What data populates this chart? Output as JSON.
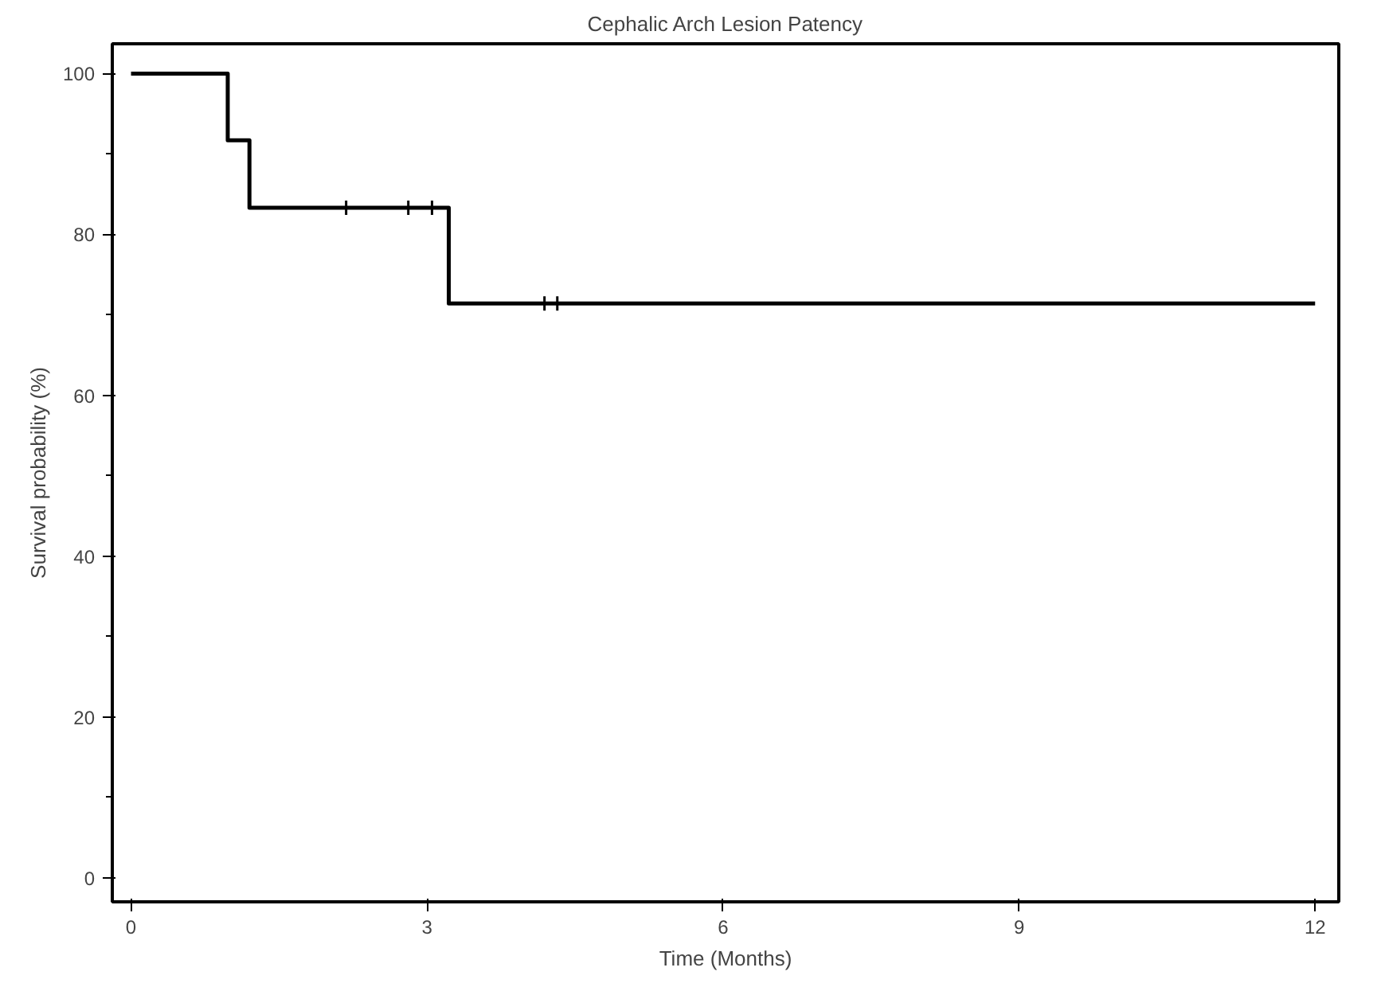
{
  "chart_data": {
    "type": "step",
    "title": "Cephalic Arch Lesion Patency",
    "xlabel": "Time (Months)",
    "ylabel": "Survival probability (%)",
    "series": [
      {
        "color": "#000000",
        "x": [
          0,
          0.98,
          1.2,
          3.22,
          12
        ],
        "values": [
          100,
          91.7,
          83.3,
          71.4,
          71.4
        ]
      },
      {
        "type": "scatter",
        "marker": "cross",
        "color": "#000000",
        "x": [
          2.18,
          2.81,
          3.05,
          4.19,
          4.32
        ],
        "values": [
          83.3,
          83.3,
          83.3,
          71.4,
          71.4
        ]
      }
    ],
    "xlim": [
      -0.19,
      12.24
    ],
    "ylim": [
      -3,
      103.7
    ],
    "xticks": [
      0,
      3,
      6,
      9,
      12
    ],
    "yticks": [
      0,
      20,
      40,
      60,
      80,
      100
    ],
    "grid": false
  }
}
